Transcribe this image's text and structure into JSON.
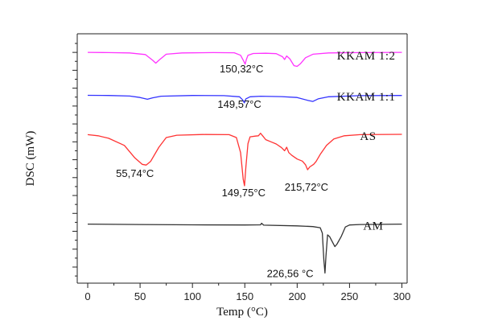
{
  "chart_data": {
    "type": "line",
    "title": "",
    "xlabel": "Temp (°C)",
    "ylabel": "DSC (mW)",
    "xlim": [
      -10,
      305
    ],
    "xticks": [
      0,
      50,
      100,
      150,
      200,
      250,
      300
    ],
    "y_tick_labels_shown": false,
    "grid": false,
    "series": [
      {
        "name": "KKAM 1:2",
        "color": "#ff33ff",
        "baseline": 0.0,
        "points": [
          [
            0,
            0
          ],
          [
            20,
            -0.05
          ],
          [
            40,
            -0.15
          ],
          [
            55,
            -0.6
          ],
          [
            62,
            -2.2
          ],
          [
            65,
            -3.0
          ],
          [
            68,
            -2.2
          ],
          [
            75,
            -0.5
          ],
          [
            90,
            -0.15
          ],
          [
            120,
            -0.05
          ],
          [
            140,
            -0.1
          ],
          [
            146,
            -0.8
          ],
          [
            149,
            -2.5
          ],
          [
            150.32,
            -3.3
          ],
          [
            151.5,
            -2.0
          ],
          [
            153,
            -0.8
          ],
          [
            158,
            -0.3
          ],
          [
            170,
            -0.25
          ],
          [
            180,
            -0.35
          ],
          [
            186,
            -1.2
          ],
          [
            188,
            -2.0
          ],
          [
            190,
            -1.0
          ],
          [
            193,
            -1.8
          ],
          [
            197,
            -3.7
          ],
          [
            200,
            -3.9
          ],
          [
            203,
            -3.2
          ],
          [
            208,
            -1.5
          ],
          [
            215,
            -0.5
          ],
          [
            230,
            -0.15
          ],
          [
            260,
            -0.05
          ],
          [
            300,
            0.0
          ]
        ]
      },
      {
        "name": "KKAM 1:1",
        "color": "#3333ff",
        "baseline": -12.0,
        "points": [
          [
            0,
            0
          ],
          [
            20,
            -0.05
          ],
          [
            40,
            -0.2
          ],
          [
            50,
            -0.6
          ],
          [
            57,
            -1.1
          ],
          [
            62,
            -0.7
          ],
          [
            70,
            -0.25
          ],
          [
            100,
            -0.05
          ],
          [
            130,
            -0.1
          ],
          [
            145,
            -0.4
          ],
          [
            148,
            -1.3
          ],
          [
            149.57,
            -2.1
          ],
          [
            151,
            -1.0
          ],
          [
            155,
            -0.4
          ],
          [
            165,
            -0.25
          ],
          [
            185,
            -0.35
          ],
          [
            200,
            -0.6
          ],
          [
            210,
            -1.4
          ],
          [
            215,
            -1.7
          ],
          [
            220,
            -1.0
          ],
          [
            230,
            -0.4
          ],
          [
            260,
            -0.1
          ],
          [
            300,
            -0.05
          ]
        ]
      },
      {
        "name": "AS",
        "color": "#ff3333",
        "baseline": -23.0,
        "points": [
          [
            0,
            0
          ],
          [
            10,
            -0.3
          ],
          [
            20,
            -1.0
          ],
          [
            35,
            -3.0
          ],
          [
            45,
            -6.5
          ],
          [
            52,
            -8.3
          ],
          [
            55.74,
            -8.5
          ],
          [
            60,
            -7.5
          ],
          [
            68,
            -3.5
          ],
          [
            75,
            -0.8
          ],
          [
            85,
            -0.15
          ],
          [
            110,
            0.05
          ],
          [
            135,
            0.0
          ],
          [
            142,
            -0.8
          ],
          [
            146,
            -5.0
          ],
          [
            148.5,
            -12.5
          ],
          [
            149.75,
            -14.3
          ],
          [
            151,
            -9.0
          ],
          [
            153,
            -2.5
          ],
          [
            155,
            -0.6
          ],
          [
            160,
            -0.4
          ],
          [
            163,
            -0.3
          ],
          [
            165,
            0.4
          ],
          [
            167,
            -0.3
          ],
          [
            170,
            -1.4
          ],
          [
            175,
            -2.0
          ],
          [
            180,
            -2.6
          ],
          [
            185,
            -3.6
          ],
          [
            188,
            -4.5
          ],
          [
            190,
            -3.5
          ],
          [
            192,
            -5.0
          ],
          [
            195,
            -5.8
          ],
          [
            200,
            -6.8
          ],
          [
            205,
            -7.4
          ],
          [
            208,
            -8.4
          ],
          [
            210,
            -9.8
          ],
          [
            212,
            -9.0
          ],
          [
            215.72,
            -8.3
          ],
          [
            218,
            -7.5
          ],
          [
            222,
            -5.5
          ],
          [
            228,
            -3.0
          ],
          [
            235,
            -1.2
          ],
          [
            245,
            -0.3
          ],
          [
            260,
            0.0
          ],
          [
            300,
            0.1
          ]
        ]
      },
      {
        "name": "AM",
        "color": "#333333",
        "baseline": -48.0,
        "points": [
          [
            0,
            0
          ],
          [
            50,
            -0.1
          ],
          [
            100,
            -0.2
          ],
          [
            150,
            -0.25
          ],
          [
            165,
            -0.2
          ],
          [
            166,
            0.25
          ],
          [
            168,
            -0.3
          ],
          [
            200,
            -0.5
          ],
          [
            215,
            -0.7
          ],
          [
            222,
            -1.0
          ],
          [
            224,
            -2.5
          ],
          [
            225.5,
            -10.0
          ],
          [
            226.56,
            -13.7
          ],
          [
            227.5,
            -9.0
          ],
          [
            229,
            -3.0
          ],
          [
            231,
            -3.5
          ],
          [
            234,
            -5.2
          ],
          [
            236,
            -6.3
          ],
          [
            238,
            -5.6
          ],
          [
            242,
            -3.5
          ],
          [
            246,
            -0.8
          ],
          [
            250,
            -0.25
          ],
          [
            260,
            -0.1
          ],
          [
            300,
            0.0
          ]
        ]
      }
    ],
    "series_labels": [
      {
        "text": "KKAM 1:2",
        "at": [
          238,
          -2.0
        ]
      },
      {
        "text": "KKAM 1:1",
        "at": [
          238,
          -13.5
        ]
      },
      {
        "text": "AS",
        "at": [
          260,
          -24.5
        ]
      },
      {
        "text": "AM",
        "at": [
          263,
          -49.5
        ]
      }
    ],
    "peak_annotations": [
      {
        "text": "150,32°C",
        "at": [
          126,
          -5.6
        ]
      },
      {
        "text": "149,57°C",
        "at": [
          124,
          -15.5
        ]
      },
      {
        "text": "55,74°C",
        "at": [
          27,
          -34.8
        ]
      },
      {
        "text": "215,72°C",
        "at": [
          188,
          -38.6
        ]
      },
      {
        "text": "149,75°C",
        "at": [
          128,
          -40.2
        ]
      },
      {
        "text": "226,56 °C",
        "at": [
          171,
          -62.8
        ]
      }
    ],
    "ylim": [
      -64.5,
      5.2
    ]
  }
}
